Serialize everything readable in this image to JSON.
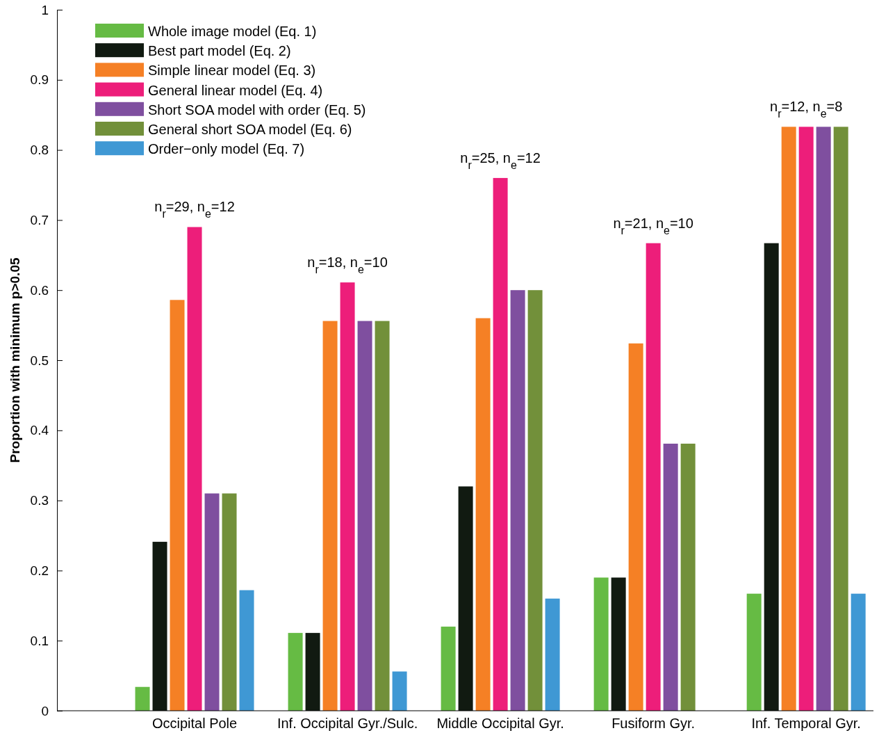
{
  "chart_data": {
    "type": "bar",
    "ylabel": "Proportion with minimum p>0.05",
    "categories": [
      "Occipital Pole",
      "Inf. Occipital Gyr./Sulc.",
      "Middle Occipital Gyr.",
      "Fusiform Gyr.",
      "Inf. Temporal Gyr."
    ],
    "series": [
      {
        "name": "Whole image model (Eq. 1)",
        "color": "#66bb44",
        "values": [
          0.034,
          0.111,
          0.12,
          0.19,
          0.167
        ]
      },
      {
        "name": "Best part model (Eq. 2)",
        "color": "#111a11",
        "values": [
          0.241,
          0.111,
          0.32,
          0.19,
          0.667
        ]
      },
      {
        "name": "Simple linear model (Eq. 3)",
        "color": "#f58025",
        "values": [
          0.586,
          0.556,
          0.56,
          0.524,
          0.833
        ]
      },
      {
        "name": "General linear model (Eq. 4)",
        "color": "#ed1e7a",
        "values": [
          0.69,
          0.611,
          0.76,
          0.667,
          0.833
        ]
      },
      {
        "name": "Short SOA model with order (Eq. 5)",
        "color": "#7f4f9f",
        "values": [
          0.31,
          0.556,
          0.6,
          0.381,
          0.833
        ]
      },
      {
        "name": "General short SOA model (Eq. 6)",
        "color": "#72903a",
        "values": [
          0.31,
          0.556,
          0.6,
          0.381,
          0.833
        ]
      },
      {
        "name": "Order−only model (Eq. 7)",
        "color": "#3f98d4",
        "values": [
          0.172,
          0.056,
          0.16,
          0,
          0.167
        ]
      }
    ],
    "ylim": [
      0,
      1
    ],
    "yticks": [
      0,
      0.1,
      0.2,
      0.3,
      0.4,
      0.5,
      0.6,
      0.7,
      0.8,
      0.9,
      1
    ],
    "legend": "top left",
    "grid": false,
    "annotations": [
      "n$_{r}$=29, n$_{e}$=12",
      "n$_{r}$=18, n$_{e}$=10",
      "n$_{r}$=25, n$_{e}$=12",
      "n$_{r}$=21, n$_{e}$=10",
      "n$_{r}$=12, n$_{e}$=8"
    ]
  }
}
